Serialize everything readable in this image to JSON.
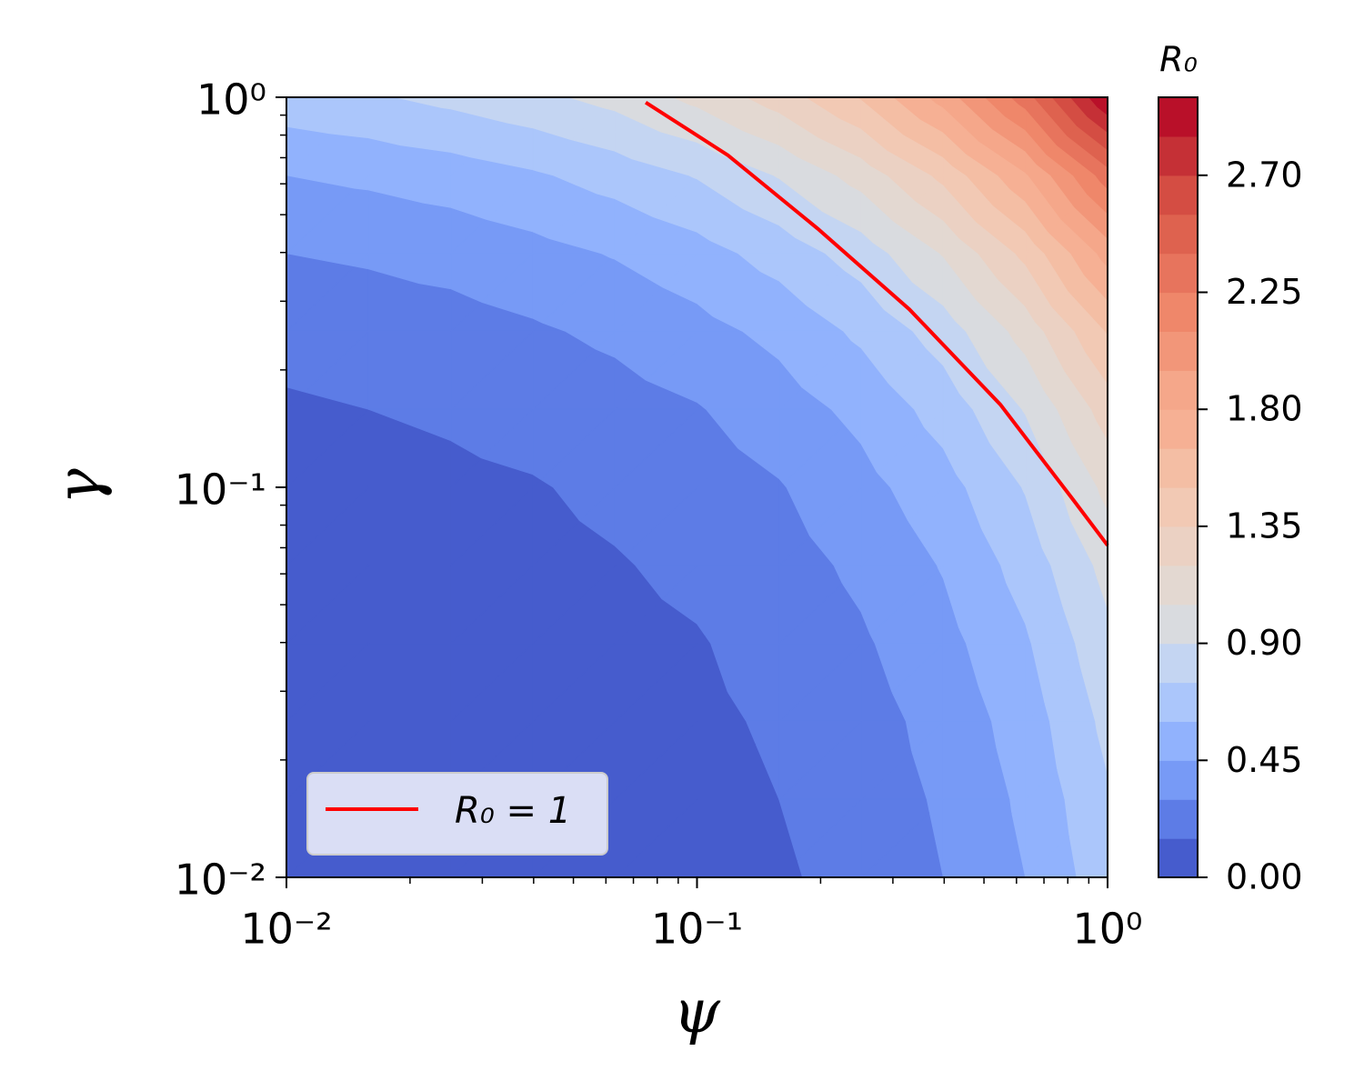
{
  "chart_data": {
    "type": "contour",
    "xlabel": "ψ",
    "ylabel": "γ",
    "colorbar_label": "R₀",
    "xscale": "log",
    "yscale": "log",
    "xlim": [
      0.01,
      1
    ],
    "ylim": [
      0.01,
      1
    ],
    "xticks": [
      {
        "value": 0.01,
        "label": "10⁻²"
      },
      {
        "value": 0.1,
        "label": "10⁻¹"
      },
      {
        "value": 1,
        "label": "10⁰"
      }
    ],
    "yticks": [
      {
        "value": 0.01,
        "label": "10⁻²"
      },
      {
        "value": 0.1,
        "label": "10⁻¹"
      },
      {
        "value": 1,
        "label": "10⁰"
      }
    ],
    "xticks_minor": [
      0.02,
      0.03,
      0.04,
      0.05,
      0.06,
      0.07,
      0.08,
      0.09,
      0.2,
      0.3,
      0.4,
      0.5,
      0.6,
      0.7,
      0.8,
      0.9
    ],
    "yticks_minor": [
      0.02,
      0.03,
      0.04,
      0.05,
      0.06,
      0.07,
      0.08,
      0.09,
      0.2,
      0.3,
      0.4,
      0.5,
      0.6,
      0.7,
      0.8,
      0.9
    ],
    "x": [
      0.01,
      0.01585,
      0.02512,
      0.03981,
      0.0631,
      0.1,
      0.1585,
      0.2512,
      0.3981,
      0.631,
      1
    ],
    "y": [
      0.01,
      0.01585,
      0.02512,
      0.03981,
      0.0631,
      0.1,
      0.1585,
      0.2512,
      0.3981,
      0.631,
      1
    ],
    "z": [
      [
        0.02,
        0.02,
        0.03,
        0.04,
        0.06,
        0.09,
        0.13,
        0.2,
        0.3,
        0.45,
        0.69
      ],
      [
        0.02,
        0.03,
        0.04,
        0.05,
        0.07,
        0.1,
        0.15,
        0.22,
        0.32,
        0.48,
        0.73
      ],
      [
        0.03,
        0.04,
        0.05,
        0.06,
        0.09,
        0.12,
        0.17,
        0.24,
        0.35,
        0.52,
        0.79
      ],
      [
        0.04,
        0.05,
        0.06,
        0.08,
        0.11,
        0.14,
        0.2,
        0.28,
        0.4,
        0.58,
        0.86
      ],
      [
        0.06,
        0.07,
        0.09,
        0.11,
        0.14,
        0.18,
        0.24,
        0.33,
        0.46,
        0.66,
        0.95
      ],
      [
        0.09,
        0.1,
        0.12,
        0.14,
        0.18,
        0.22,
        0.29,
        0.4,
        0.54,
        0.76,
        1.09
      ],
      [
        0.13,
        0.15,
        0.17,
        0.2,
        0.24,
        0.29,
        0.38,
        0.49,
        0.66,
        0.91,
        1.27
      ],
      [
        0.2,
        0.22,
        0.24,
        0.28,
        0.33,
        0.4,
        0.49,
        0.63,
        0.82,
        1.11,
        1.51
      ],
      [
        0.3,
        0.32,
        0.35,
        0.4,
        0.46,
        0.54,
        0.66,
        0.82,
        1.06,
        1.39,
        1.86
      ],
      [
        0.45,
        0.48,
        0.52,
        0.58,
        0.66,
        0.76,
        0.91,
        1.11,
        1.39,
        1.78,
        2.33
      ],
      [
        0.69,
        0.73,
        0.79,
        0.86,
        0.95,
        1.09,
        1.27,
        1.51,
        1.86,
        2.33,
        3.0
      ]
    ],
    "levels": [
      0,
      0.15,
      0.3,
      0.45,
      0.6,
      0.75,
      0.9,
      1.05,
      1.2,
      1.35,
      1.5,
      1.65,
      1.8,
      1.95,
      2.1,
      2.25,
      2.4,
      2.55,
      2.7,
      2.85,
      3.0
    ],
    "colors": [
      "#465ccd",
      "#5d7ce6",
      "#779af6",
      "#91b2fd",
      "#abc6fb",
      "#c4d5f2",
      "#d9dbdf",
      "#e3d8d1",
      "#ebd1c3",
      "#f2c9b4",
      "#f4bea4",
      "#f6b094",
      "#f5a78a",
      "#f29679",
      "#ef876a",
      "#e7745d",
      "#de624f",
      "#d44d43",
      "#c53036",
      "#b91029"
    ],
    "colorbar_ticks": [
      {
        "value": 0,
        "label": "0.00"
      },
      {
        "value": 0.45,
        "label": "0.45"
      },
      {
        "value": 0.9,
        "label": "0.90"
      },
      {
        "value": 1.35,
        "label": "1.35"
      },
      {
        "value": 1.8,
        "label": "1.80"
      },
      {
        "value": 2.25,
        "label": "2.25"
      },
      {
        "value": 2.7,
        "label": "2.70"
      }
    ],
    "contour_line": {
      "name": "R₀ = 1",
      "color": "#ff0000",
      "x": [
        0.075,
        0.119,
        0.197,
        0.329,
        0.548,
        0.824,
        1
      ],
      "y": [
        0.97,
        0.71,
        0.46,
        0.286,
        0.163,
        0.093,
        0.071
      ]
    },
    "legend_loc": "lower left"
  }
}
